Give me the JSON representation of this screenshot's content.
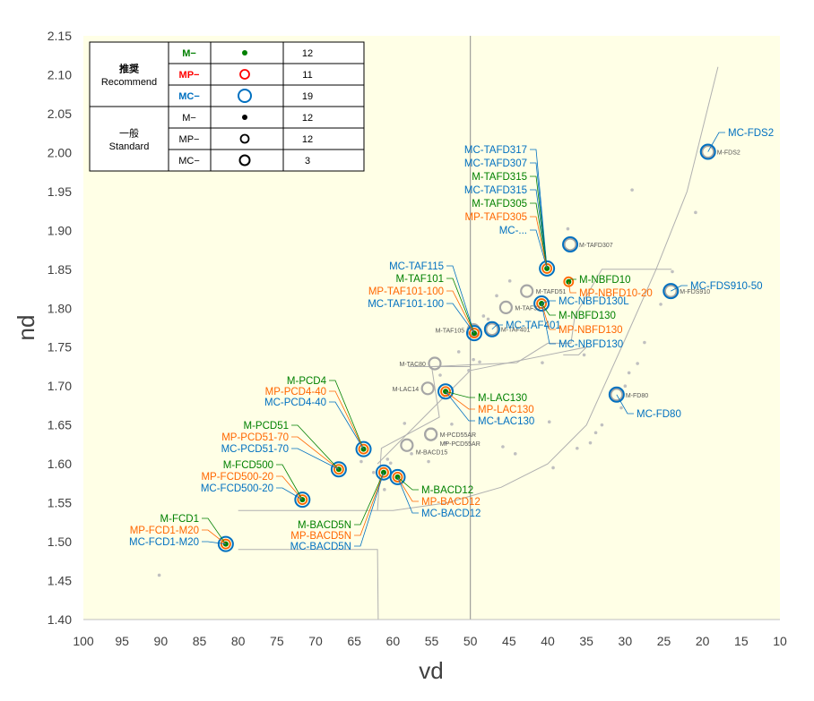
{
  "chart_data": {
    "type": "scatter",
    "xlabel": "vd",
    "ylabel": "nd",
    "xlim": [
      100,
      10
    ],
    "ylim": [
      1.4,
      2.15
    ],
    "x_reversed": true,
    "grid": false,
    "background": "#ffffe6",
    "x_ticks": [
      "100",
      "95",
      "90",
      "85",
      "80",
      "75",
      "70",
      "65",
      "60",
      "55",
      "50",
      "45",
      "40",
      "35",
      "30",
      "25",
      "20",
      "15",
      "10"
    ],
    "y_ticks": [
      "1.40",
      "1.45",
      "1.50",
      "1.55",
      "1.60",
      "1.65",
      "1.70",
      "1.75",
      "1.80",
      "1.85",
      "1.90",
      "1.95",
      "2.00",
      "2.05",
      "2.10",
      "2.15"
    ],
    "colors": {
      "M": "#008000",
      "MP": "#ff6600",
      "MC": "#0070c0",
      "MPlegend": "#ff0000",
      "general": "#a6a6a6"
    },
    "legend": {
      "placement": "top-left",
      "groups": [
        {
          "jp": "推奨",
          "en": "Recommend",
          "rows": [
            {
              "name": "M−",
              "marker": "M",
              "count": "12"
            },
            {
              "name": "MP−",
              "marker": "MP",
              "count": "11"
            },
            {
              "name": "MC−",
              "marker": "MC",
              "count": "19"
            }
          ]
        },
        {
          "jp": "一般",
          "en": "Standard",
          "rows": [
            {
              "name": "M−",
              "marker": "M",
              "count": "12"
            },
            {
              "name": "MP−",
              "marker": "MP",
              "count": "12"
            },
            {
              "name": "MC−",
              "marker": "MC",
              "count": "3"
            }
          ]
        }
      ]
    },
    "recommended": [
      {
        "vd": 81.6,
        "nd": 1.497,
        "M": true,
        "MP": true,
        "MC": true,
        "labels": [
          [
            "M-FCD1",
            "M"
          ],
          [
            "MP-FCD1-M20",
            "MP"
          ],
          [
            "MC-FCD1-M20",
            "MC"
          ]
        ],
        "side": "left"
      },
      {
        "vd": 71.7,
        "nd": 1.554,
        "M": true,
        "MP": true,
        "MC": true,
        "labels": [
          [
            "M-FCD500",
            "M"
          ],
          [
            "MP-FCD500-20",
            "MP"
          ],
          [
            "MC-FCD500-20",
            "MC"
          ]
        ],
        "side": "left"
      },
      {
        "vd": 67.0,
        "nd": 1.593,
        "M": true,
        "MP": true,
        "MC": true,
        "labels": [
          [
            "M-PCD51",
            "M"
          ],
          [
            "MP-PCD51-70",
            "MP"
          ],
          [
            "MC-PCD51-70",
            "MC"
          ]
        ],
        "side": "left"
      },
      {
        "vd": 63.8,
        "nd": 1.619,
        "M": true,
        "MP": true,
        "MC": true,
        "labels": [
          [
            "M-PCD4",
            "M"
          ],
          [
            "MP-PCD4-40",
            "MP"
          ],
          [
            "MC-PCD4-40",
            "MC"
          ]
        ],
        "side": "left"
      },
      {
        "vd": 61.2,
        "nd": 1.589,
        "M": true,
        "MP": true,
        "MC": true,
        "labels": [
          [
            "M-BACD5N",
            "M"
          ],
          [
            "MP-BACD5N",
            "MP"
          ],
          [
            "MC-BACD5N",
            "MC"
          ]
        ],
        "side": "below"
      },
      {
        "vd": 59.4,
        "nd": 1.583,
        "M": true,
        "MP": true,
        "MC": true,
        "labels": [
          [
            "M-BACD12",
            "M"
          ],
          [
            "MP-BACD12",
            "MP"
          ],
          [
            "MC-BACD12",
            "MC"
          ]
        ],
        "side": "right"
      },
      {
        "vd": 53.2,
        "nd": 1.693,
        "M": true,
        "MP": true,
        "MC": true,
        "labels": [
          [
            "M-LAC130",
            "M"
          ],
          [
            "MP-LAC130",
            "MP"
          ],
          [
            "MC-LAC130",
            "MC"
          ]
        ],
        "side": "right"
      },
      {
        "vd": 49.5,
        "nd": 1.768,
        "M": true,
        "MP": true,
        "MC": true,
        "labels": [
          [
            "MC-TAF115",
            "MC"
          ],
          [
            "M-TAF101",
            "M"
          ],
          [
            "MP-TAF101-100",
            "MP"
          ],
          [
            "MC-TAF101-100",
            "MC"
          ]
        ],
        "side": "left"
      },
      {
        "vd": 47.2,
        "nd": 1.773,
        "M": false,
        "MP": false,
        "MC": true,
        "labels": [
          [
            "MC-TAF401",
            "MC"
          ]
        ],
        "side": "right"
      },
      {
        "vd": 40.8,
        "nd": 1.806,
        "M": true,
        "MP": true,
        "MC": true,
        "labels": [
          [
            "MC-NBFD130L",
            "MC"
          ],
          [
            "M-NBFD130",
            "M"
          ],
          [
            "MP-NBFD130",
            "MP"
          ],
          [
            "MC-NBFD130",
            "MC"
          ]
        ],
        "side": "right"
      },
      {
        "vd": 40.1,
        "nd": 1.851,
        "M": true,
        "MP": true,
        "MC": true,
        "labels": [
          [
            "MC-TAFD317",
            "MC"
          ],
          [
            "MC-TAFD307",
            "MC"
          ],
          [
            "M-TAFD315",
            "M"
          ],
          [
            "MC-TAFD315",
            "MC"
          ],
          [
            "M-TAFD305",
            "M"
          ],
          [
            "MP-TAFD305",
            "MP"
          ],
          [
            "MC-...",
            "MC"
          ]
        ],
        "side": "left"
      },
      {
        "vd": 37.3,
        "nd": 1.834,
        "M": true,
        "MP": true,
        "MC": false,
        "labels": [
          [
            "M-NBFD10",
            "M"
          ],
          [
            "MP-NBFD10-20",
            "MP"
          ]
        ],
        "side": "right"
      },
      {
        "vd": 37.1,
        "nd": 1.882,
        "M": false,
        "MP": false,
        "MC": true,
        "labels": [],
        "side": "none"
      },
      {
        "vd": 31.1,
        "nd": 1.689,
        "M": false,
        "MP": false,
        "MC": true,
        "labels": [
          [
            "MC-FD80",
            "MC"
          ]
        ],
        "side": "right"
      },
      {
        "vd": 24.1,
        "nd": 1.822,
        "M": false,
        "MP": false,
        "MC": true,
        "labels": [
          [
            "MC-FDS910-50",
            "MC"
          ]
        ],
        "side": "right"
      },
      {
        "vd": 19.3,
        "nd": 2.001,
        "M": false,
        "MP": false,
        "MC": true,
        "labels": [
          [
            "MC-FDS2",
            "MC"
          ]
        ],
        "side": "right"
      }
    ],
    "standard_rings": [
      {
        "vd": 58.2,
        "nd": 1.624,
        "label": "M-BACD15"
      },
      {
        "vd": 55.1,
        "nd": 1.638,
        "label": "M-PCD55AR"
      },
      {
        "vd": 55.1,
        "nd": 1.638,
        "label": "MP-PCD55AR"
      },
      {
        "vd": 55.5,
        "nd": 1.697,
        "label": "M-LAC14"
      },
      {
        "vd": 54.6,
        "nd": 1.729,
        "label": "M-TAC80"
      },
      {
        "vd": 49.6,
        "nd": 1.772,
        "label": "M-TAF105"
      },
      {
        "vd": 45.4,
        "nd": 1.801,
        "label": "M-TAF31"
      },
      {
        "vd": 42.7,
        "nd": 1.822,
        "label": "M-TAFD51"
      },
      {
        "vd": 47.2,
        "nd": 1.773,
        "label": "M-TAF401"
      },
      {
        "vd": 37.1,
        "nd": 1.882,
        "label": "M-TAFD307"
      },
      {
        "vd": 31.1,
        "nd": 1.689,
        "label": "M-FD80"
      },
      {
        "vd": 24.1,
        "nd": 1.822,
        "label": "M-FDS910"
      },
      {
        "vd": 19.3,
        "nd": 2.001,
        "label": "M-FDS2"
      }
    ],
    "other_glass": [
      [
        90.2,
        1.457
      ],
      [
        64.1,
        1.603
      ],
      [
        62.5,
        1.589
      ],
      [
        61.1,
        1.567
      ],
      [
        60.3,
        1.601
      ],
      [
        60.7,
        1.606
      ],
      [
        58.5,
        1.652
      ],
      [
        57.6,
        1.613
      ],
      [
        55.4,
        1.603
      ],
      [
        53.9,
        1.714
      ],
      [
        53.2,
        1.627
      ],
      [
        52.4,
        1.651
      ],
      [
        51.5,
        1.744
      ],
      [
        50.2,
        1.72
      ],
      [
        49.6,
        1.734
      ],
      [
        48.8,
        1.731
      ],
      [
        48.3,
        1.79
      ],
      [
        47.7,
        1.786
      ],
      [
        46.6,
        1.816
      ],
      [
        46.4,
        1.658
      ],
      [
        45.8,
        1.622
      ],
      [
        44.9,
        1.835
      ],
      [
        44.2,
        1.613
      ],
      [
        40.7,
        1.73
      ],
      [
        39.8,
        1.654
      ],
      [
        39.3,
        1.595
      ],
      [
        36.2,
        1.62
      ],
      [
        34.5,
        1.627
      ],
      [
        33.8,
        1.64
      ],
      [
        35.3,
        1.74
      ],
      [
        33.0,
        1.65
      ],
      [
        30.5,
        1.672
      ],
      [
        29.5,
        1.717
      ],
      [
        28.4,
        1.729
      ],
      [
        27.5,
        1.756
      ],
      [
        25.4,
        1.805
      ],
      [
        23.9,
        1.847
      ],
      [
        20.9,
        1.923
      ],
      [
        29.1,
        1.952
      ],
      [
        37.4,
        1.902
      ],
      [
        30.0,
        1.7
      ]
    ],
    "boundary_lines": [
      [
        [
          18.0,
          2.11
        ],
        [
          22,
          1.95
        ],
        [
          26,
          1.85
        ],
        [
          30,
          1.76
        ],
        [
          35,
          1.65
        ],
        [
          40,
          1.6
        ],
        [
          46,
          1.57
        ],
        [
          53,
          1.55
        ],
        [
          60,
          1.54
        ],
        [
          80,
          1.54
        ]
      ],
      [
        [
          80,
          1.49
        ],
        [
          62,
          1.49
        ],
        [
          61.9,
          1.4
        ]
      ],
      [
        [
          62,
          1.54
        ],
        [
          61.5,
          1.62
        ],
        [
          54,
          1.66
        ],
        [
          55,
          1.725
        ],
        [
          44,
          1.73
        ],
        [
          40,
          1.755
        ],
        [
          37,
          1.755
        ],
        [
          36.5,
          1.79
        ],
        [
          33,
          1.85
        ],
        [
          24,
          1.85
        ]
      ],
      [
        [
          62,
          1.6
        ],
        [
          50,
          1.72
        ],
        [
          35,
          1.75
        ],
        [
          36,
          1.74
        ],
        [
          38,
          1.74
        ]
      ],
      [
        [
          50,
          1.4
        ],
        [
          50,
          2.15
        ]
      ],
      [
        [
          58,
          1.725
        ],
        [
          50,
          1.725
        ]
      ]
    ]
  }
}
